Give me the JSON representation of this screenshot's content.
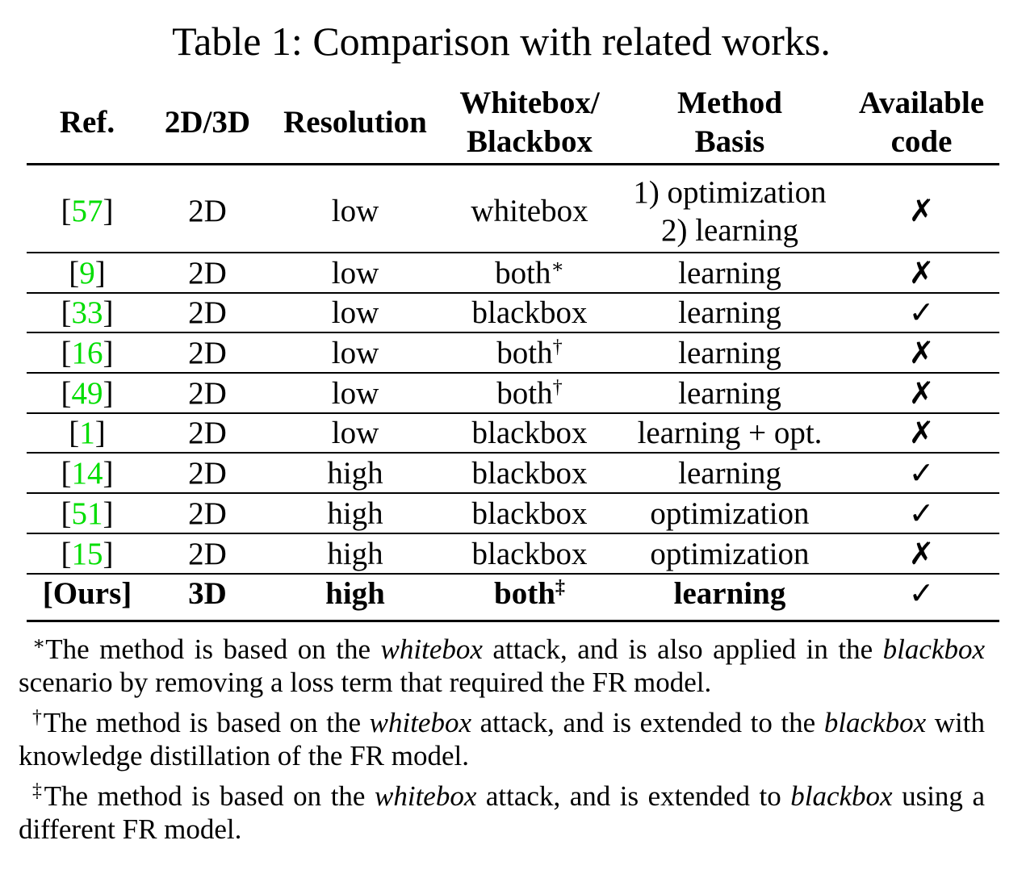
{
  "title": "Table 1: Comparison with related works.",
  "colors": {
    "citation": "#00dd00",
    "text": "#000000"
  },
  "table": {
    "headers": [
      {
        "lines": [
          "Ref."
        ]
      },
      {
        "lines": [
          "2D/3D"
        ]
      },
      {
        "lines": [
          "Resolution"
        ]
      },
      {
        "lines": [
          "Whitebox/",
          "Blackbox"
        ]
      },
      {
        "lines": [
          "Method",
          "Basis"
        ]
      },
      {
        "lines": [
          "Available",
          "code"
        ]
      }
    ],
    "rows": [
      {
        "ref": [
          "[",
          "57",
          "]"
        ],
        "dim": "2D",
        "resolution": "low",
        "box": "whitebox",
        "method": [
          "1) optimization",
          "2) learning"
        ],
        "code": "✗"
      },
      {
        "ref": [
          "[",
          "9",
          "]"
        ],
        "dim": "2D",
        "resolution": "low",
        "box": "both",
        "box_note": "∗",
        "method": [
          "learning"
        ],
        "code": "✗"
      },
      {
        "ref": [
          "[",
          "33",
          "]"
        ],
        "dim": "2D",
        "resolution": "low",
        "box": "blackbox",
        "method": [
          "learning"
        ],
        "code": "✓"
      },
      {
        "ref": [
          "[",
          "16",
          "]"
        ],
        "dim": "2D",
        "resolution": "low",
        "box": "both",
        "box_note": "†",
        "method": [
          "learning"
        ],
        "code": "✗"
      },
      {
        "ref": [
          "[",
          "49",
          "]"
        ],
        "dim": "2D",
        "resolution": "low",
        "box": "both",
        "box_note": "†",
        "method": [
          "learning"
        ],
        "code": "✗"
      },
      {
        "ref": [
          "[",
          "1",
          "]"
        ],
        "dim": "2D",
        "resolution": "low",
        "box": "blackbox",
        "method": [
          "learning + opt."
        ],
        "code": "✗"
      },
      {
        "ref": [
          "[",
          "14",
          "]"
        ],
        "dim": "2D",
        "resolution": "high",
        "box": "blackbox",
        "method": [
          "learning"
        ],
        "code": "✓"
      },
      {
        "ref": [
          "[",
          "51",
          "]"
        ],
        "dim": "2D",
        "resolution": "high",
        "box": "blackbox",
        "method": [
          "optimization"
        ],
        "code": "✓"
      },
      {
        "ref": [
          "[",
          "15",
          "]"
        ],
        "dim": "2D",
        "resolution": "high",
        "box": "blackbox",
        "method": [
          "optimization"
        ],
        "code": "✗"
      },
      {
        "ref": [
          "[",
          "Ours",
          "]"
        ],
        "dim": "3D",
        "resolution": "high",
        "box": "both",
        "box_note": "‡",
        "method": [
          "learning"
        ],
        "code": "✓",
        "bold": true
      }
    ]
  },
  "footnotes": [
    {
      "mark": "∗",
      "segments": [
        {
          "text": "The method is based on the ",
          "italic": false
        },
        {
          "text": "whitebox",
          "italic": true
        },
        {
          "text": " attack, and is also applied in the ",
          "italic": false
        },
        {
          "text": "blackbox",
          "italic": true
        },
        {
          "text": " scenario by removing a loss term that required the FR model.",
          "italic": false
        }
      ]
    },
    {
      "mark": "†",
      "segments": [
        {
          "text": "The method is based on the ",
          "italic": false
        },
        {
          "text": "whitebox",
          "italic": true
        },
        {
          "text": " attack, and is extended to the ",
          "italic": false
        },
        {
          "text": "blackbox",
          "italic": true
        },
        {
          "text": " with knowledge distillation of the FR model.",
          "italic": false
        }
      ]
    },
    {
      "mark": "‡",
      "segments": [
        {
          "text": "The method is based on the ",
          "italic": false
        },
        {
          "text": "whitebox",
          "italic": true
        },
        {
          "text": " attack, and is extended to ",
          "italic": false
        },
        {
          "text": "blackbox",
          "italic": true
        },
        {
          "text": " using a different FR model.",
          "italic": false
        }
      ]
    }
  ]
}
